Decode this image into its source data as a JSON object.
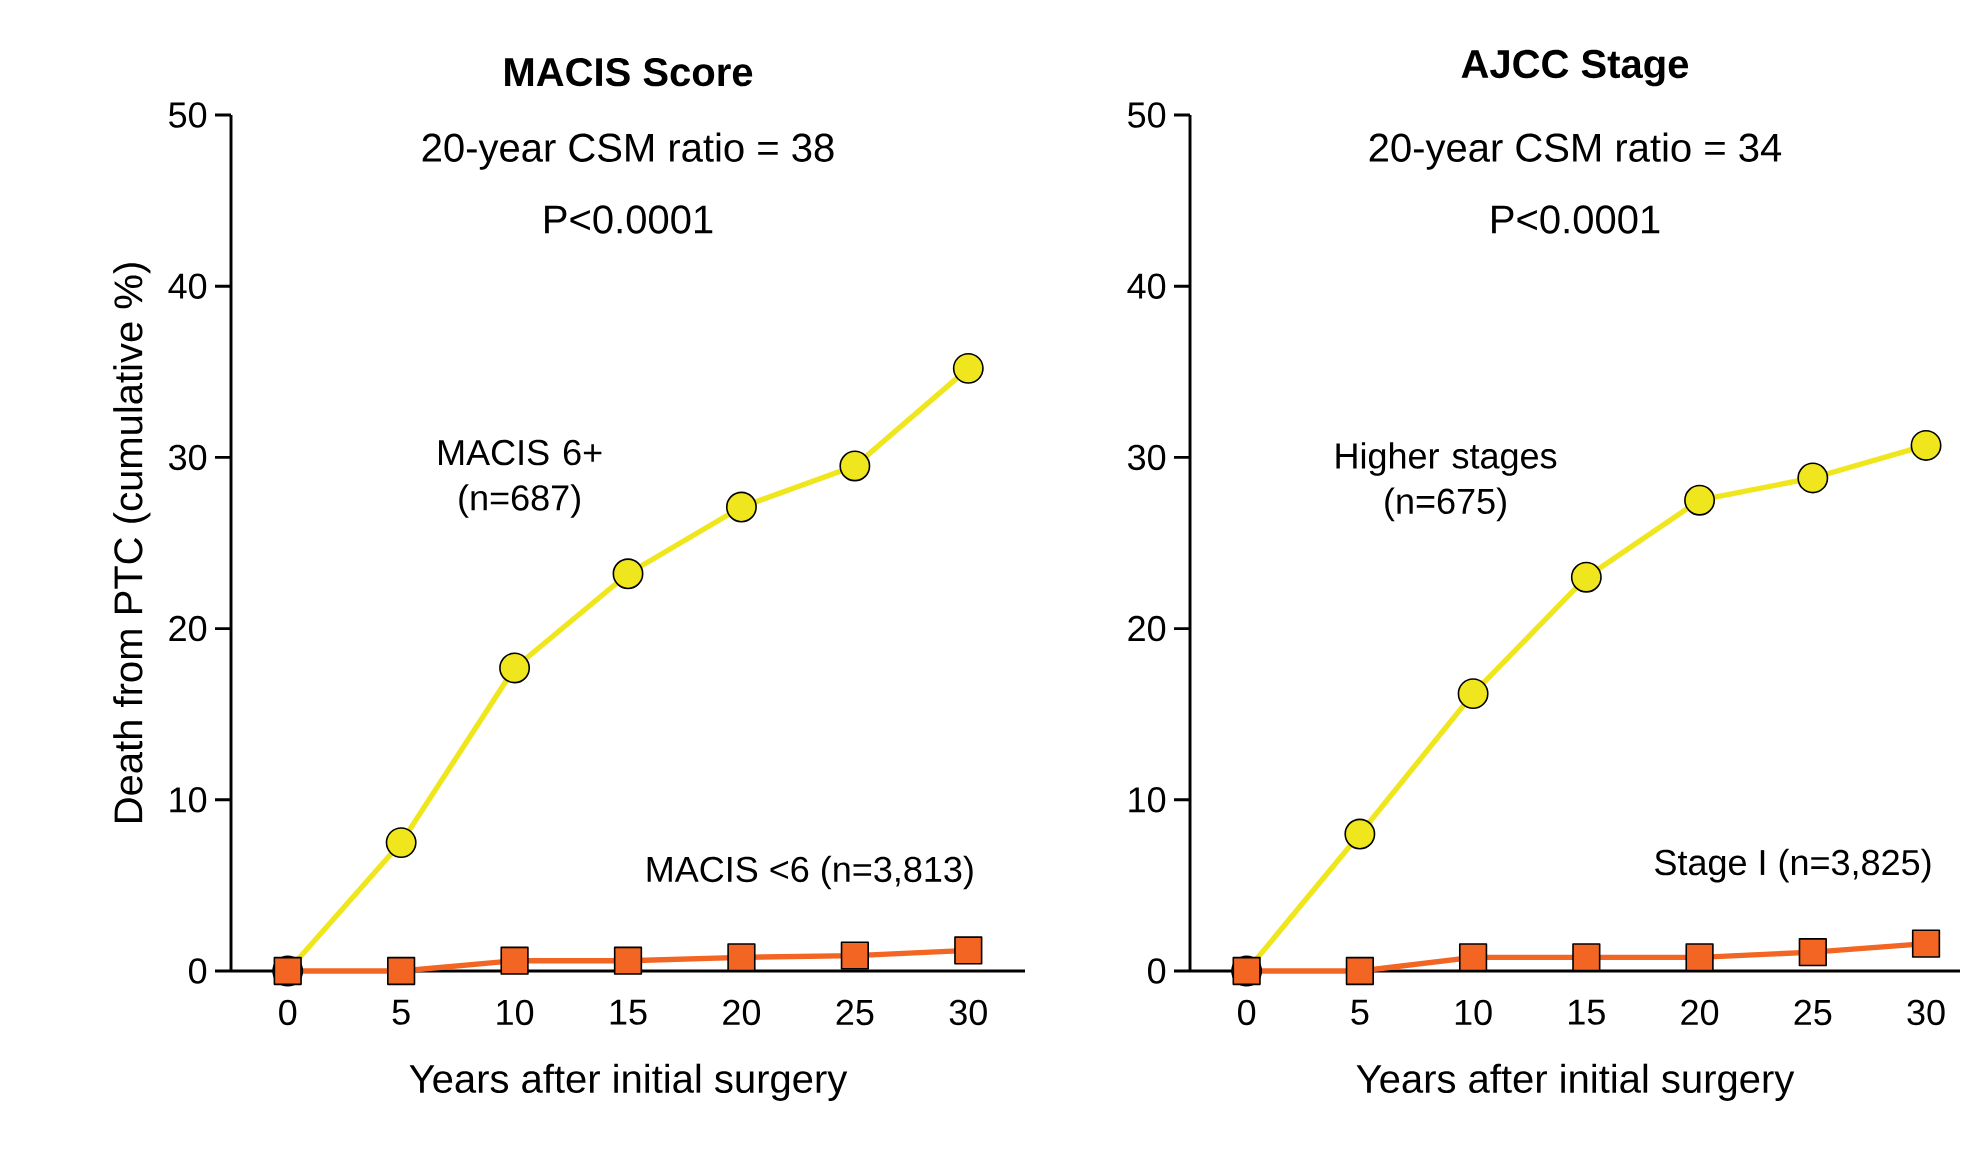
{
  "chart_data": [
    {
      "type": "line",
      "title": "MACIS Score",
      "xlabel": "Years after initial surgery",
      "ylabel": "Death from PTC (cumulative %)",
      "annotations": [
        "20-year CSM ratio = 38",
        "P<0.0001"
      ],
      "x": [
        0,
        5,
        10,
        15,
        20,
        25,
        30
      ],
      "xlim": [
        -2.5,
        32.5
      ],
      "xticks": [
        0,
        5,
        10,
        15,
        20,
        25,
        30
      ],
      "ylim": [
        0,
        50
      ],
      "yticks": [
        0,
        10,
        20,
        30,
        40,
        50
      ],
      "grid": false,
      "legend": false,
      "line_style": "solid",
      "series": [
        {
          "name": "MACIS 6+ (n=687)",
          "color": "#f0e61e",
          "marker": "circle",
          "values": [
            0,
            7.5,
            17.7,
            23.2,
            27.1,
            29.5,
            35.2
          ]
        },
        {
          "name": "MACIS <6 (n=3,813)",
          "color": "#f26522",
          "marker": "square",
          "values": [
            0,
            0,
            0.6,
            0.6,
            0.8,
            0.9,
            1.2
          ]
        }
      ]
    },
    {
      "type": "line",
      "title": "AJCC Stage",
      "xlabel": "Years after initial surgery",
      "annotations": [
        "20-year CSM ratio = 34",
        "P<0.0001"
      ],
      "x": [
        0,
        5,
        10,
        15,
        20,
        25,
        30
      ],
      "xlim": [
        -2.5,
        31.5
      ],
      "xticks": [
        0,
        5,
        10,
        15,
        20,
        25,
        30
      ],
      "ylim": [
        0,
        50
      ],
      "yticks": [
        0,
        10,
        20,
        30,
        40,
        50
      ],
      "grid": false,
      "legend": false,
      "line_style": "solid",
      "series": [
        {
          "name": "Higher stages (n=675)",
          "color": "#f0e61e",
          "marker": "circle",
          "values": [
            0,
            8.0,
            16.2,
            23.0,
            27.5,
            28.8,
            30.7
          ]
        },
        {
          "name": "Stage I (n=3,825)",
          "color": "#f26522",
          "marker": "square",
          "values": [
            0,
            0,
            0.8,
            0.8,
            0.8,
            1.1,
            1.6
          ]
        }
      ]
    }
  ]
}
